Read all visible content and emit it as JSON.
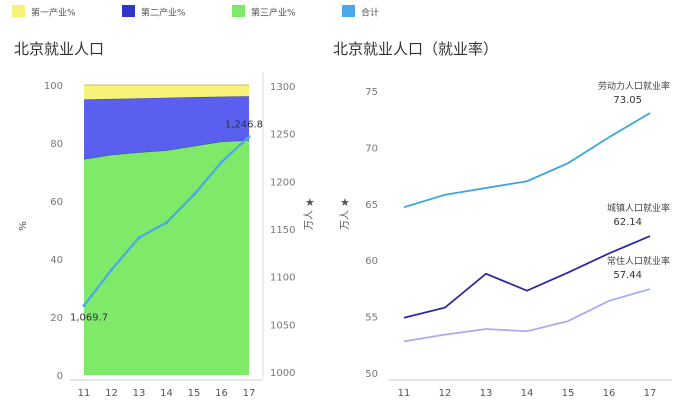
{
  "legend": [
    {
      "label": "第一产业%",
      "color": "#f7f37a"
    },
    {
      "label": "第二产业%",
      "color": "#2f35c8"
    },
    {
      "label": "第三产业%",
      "color": "#7fe96a"
    },
    {
      "label": "合计",
      "color": "#4aa8e8"
    }
  ],
  "chart_data": [
    {
      "type": "area",
      "title": "北京就业人口",
      "x": [
        "11",
        "12",
        "13",
        "14",
        "15",
        "16",
        "17"
      ],
      "ylabel": "%",
      "ylim": [
        0,
        100
      ],
      "yticks": [
        0,
        20,
        40,
        60,
        80,
        100
      ],
      "series": [
        {
          "name": "第三产业%",
          "color": "#7fe96a",
          "values": [
            74.5,
            76,
            76.8,
            77.5,
            79,
            80.5,
            81
          ]
        },
        {
          "name": "第二产业%",
          "color": "#5b5ff0",
          "values": [
            20.5,
            19.2,
            18.6,
            18.1,
            16.8,
            15.5,
            15.1
          ]
        },
        {
          "name": "第一产业%",
          "color": "#f7f37a",
          "values": [
            5,
            4.8,
            4.6,
            4.4,
            4.2,
            4,
            3.9
          ]
        }
      ],
      "secondary_axis": {
        "ylabel": "万人",
        "ylim": [
          1000,
          1300
        ],
        "yticks": [
          1000,
          1050,
          1100,
          1150,
          1200,
          1250,
          1300
        ]
      },
      "line_series": {
        "name": "合计",
        "color": "#4aa8e8",
        "axis": "secondary",
        "values": [
          1069.7,
          1107.3,
          1141.0,
          1156.7,
          1186.1,
          1220.1,
          1246.8
        ]
      },
      "data_labels": [
        {
          "x": "11",
          "text": "1,069.7"
        },
        {
          "x": "17",
          "text": "1,246.8"
        }
      ],
      "grid": false
    },
    {
      "type": "line",
      "title": "北京就业人口（就业率）",
      "x": [
        "11",
        "12",
        "13",
        "14",
        "15",
        "16",
        "17"
      ],
      "ylabel": "万人",
      "ylim": [
        50,
        75
      ],
      "yticks": [
        50,
        55,
        60,
        65,
        70,
        75
      ],
      "series": [
        {
          "name": "劳动力人口就业率",
          "color": "#3aa6dd",
          "values": [
            64.7,
            65.8,
            66.4,
            67.0,
            68.6,
            70.9,
            73.05
          ],
          "end_label": "73.05"
        },
        {
          "name": "城镇人口就业率",
          "color": "#2a2aa0",
          "values": [
            54.9,
            55.8,
            58.8,
            57.3,
            58.9,
            60.6,
            62.14
          ],
          "end_label": "62.14"
        },
        {
          "name": "常住人口就业率",
          "color": "#a9acef",
          "values": [
            52.8,
            53.4,
            53.9,
            53.7,
            54.6,
            56.4,
            57.44
          ],
          "end_label": "57.44"
        }
      ],
      "grid": false
    }
  ]
}
